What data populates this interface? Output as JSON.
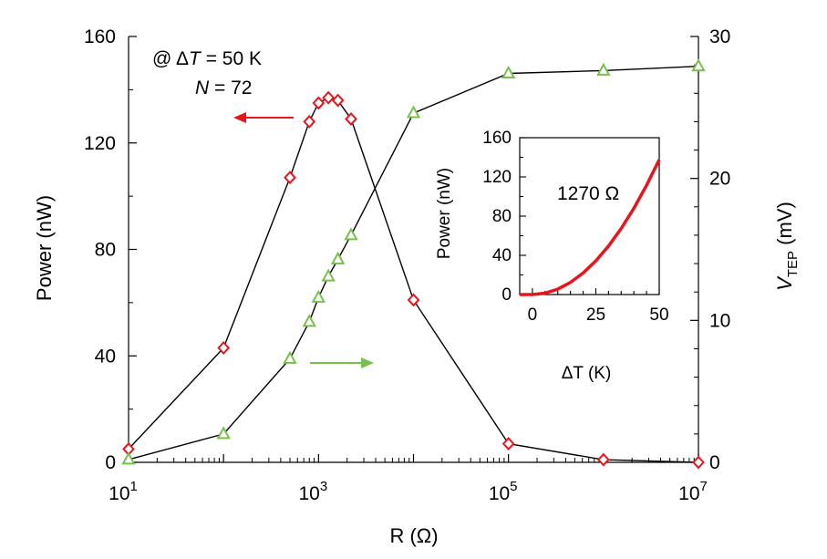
{
  "chart_data": [
    {
      "type": "line",
      "xscale": "log",
      "xlabel": "R (Ω)",
      "ylabel_left": "Power (nW)",
      "ylabel_right_main": "V",
      "ylabel_right_sub": "TEP",
      "ylabel_right_unit": " (mV)",
      "xlim": [
        10,
        10000000
      ],
      "ylim_left": [
        0,
        160
      ],
      "ylim_right": [
        0,
        30
      ],
      "x_tick_labels": [
        {
          "value": 10,
          "base": "10",
          "exp": "1"
        },
        {
          "value": 1000,
          "base": "10",
          "exp": "3"
        },
        {
          "value": 100000,
          "base": "10",
          "exp": "5"
        },
        {
          "value": 10000000,
          "base": "10",
          "exp": "7"
        }
      ],
      "y_left_ticks": [
        0,
        40,
        80,
        120,
        160
      ],
      "y_right_ticks": [
        0,
        10,
        20,
        30
      ],
      "annotations": {
        "condition_prefix": "@ Δ",
        "condition_var": "T",
        "condition_suffix": " = 50 K",
        "n_var": "N",
        "n_suffix": " = 72"
      },
      "series": [
        {
          "axis": "left",
          "marker": "diamond",
          "color": "#e8141e",
          "x": [
            10,
            100,
            500,
            800,
            1000,
            1270,
            1600,
            2200,
            10000,
            100000,
            1000000,
            10000000
          ],
          "y": [
            5,
            43,
            107,
            128,
            135,
            137,
            136,
            129,
            61,
            7,
            1,
            0
          ]
        },
        {
          "axis": "right",
          "marker": "triangle",
          "color": "#77c04c",
          "x": [
            10,
            100,
            500,
            800,
            1000,
            1270,
            1600,
            2200,
            10000,
            100000,
            1000000,
            10000000
          ],
          "y": [
            0.2,
            2.0,
            7.3,
            9.9,
            11.6,
            13.1,
            14.3,
            16.0,
            24.6,
            27.4,
            27.6,
            27.9
          ]
        }
      ],
      "arrows": [
        {
          "points_to": "left",
          "color": "#e8141e"
        },
        {
          "points_to": "right",
          "color": "#77c04c"
        }
      ]
    },
    {
      "type": "line",
      "inset": true,
      "xlabel": "ΔT (K)",
      "ylabel": "Power (nW)",
      "xlim": [
        -5,
        50
      ],
      "ylim": [
        0,
        160
      ],
      "x_ticks": [
        0,
        25,
        50
      ],
      "y_ticks": [
        0,
        40,
        80,
        120,
        160
      ],
      "annotation": "1270 Ω",
      "series": [
        {
          "color": "#e8141e",
          "x": [
            -5,
            0,
            5,
            10,
            15,
            20,
            25,
            30,
            35,
            40,
            45,
            50
          ],
          "y": [
            0,
            0,
            1.4,
            5.5,
            12.4,
            22,
            34.4,
            49.5,
            67.4,
            88,
            111.4,
            137.5
          ]
        }
      ]
    }
  ]
}
